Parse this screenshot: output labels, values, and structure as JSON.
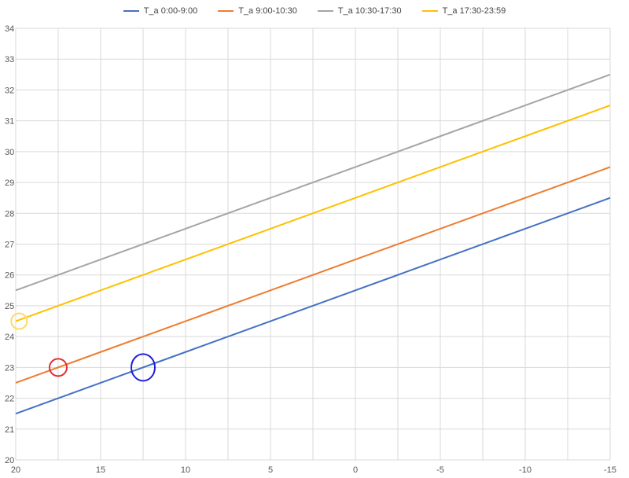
{
  "chart_data": {
    "type": "line",
    "x": [
      20,
      15,
      10,
      5,
      0,
      -5,
      -10,
      -15
    ],
    "xlim": [
      20,
      -15
    ],
    "ylim": [
      20,
      34
    ],
    "x_ticks": [
      "20",
      "15",
      "10",
      "5",
      "0",
      "-5",
      "-10",
      "-15"
    ],
    "y_ticks": [
      "20",
      "21",
      "22",
      "23",
      "24",
      "25",
      "26",
      "27",
      "28",
      "29",
      "30",
      "31",
      "32",
      "33",
      "34"
    ],
    "grid": true,
    "legend_position": "top",
    "series": [
      {
        "name": "T_a 0:00-9:00",
        "color": "#4472C4",
        "values": [
          21.5,
          22.5,
          23.5,
          24.5,
          25.5,
          26.5,
          27.5,
          28.5
        ]
      },
      {
        "name": "T_a 9:00-10:30",
        "color": "#ED7D31",
        "values": [
          22.5,
          23.5,
          24.5,
          25.5,
          26.5,
          27.5,
          28.5,
          29.5
        ]
      },
      {
        "name": "T_a 10:30-17:30",
        "color": "#A5A5A5",
        "values": [
          25.5,
          26.5,
          27.5,
          28.5,
          29.5,
          30.5,
          31.5,
          32.5
        ]
      },
      {
        "name": "T_a 17:30-23:59",
        "color": "#FFC000",
        "values": [
          24.5,
          25.5,
          26.5,
          27.5,
          28.5,
          29.5,
          30.5,
          31.5
        ]
      }
    ],
    "annotations": [
      {
        "type": "circle",
        "x": 19.8,
        "y": 24.5,
        "color": "#FFD966"
      },
      {
        "type": "circle",
        "x": 17.5,
        "y": 23,
        "color": "#E03030"
      },
      {
        "type": "circle",
        "x": 12.5,
        "y": 23,
        "color": "#1F1FD6"
      }
    ]
  }
}
